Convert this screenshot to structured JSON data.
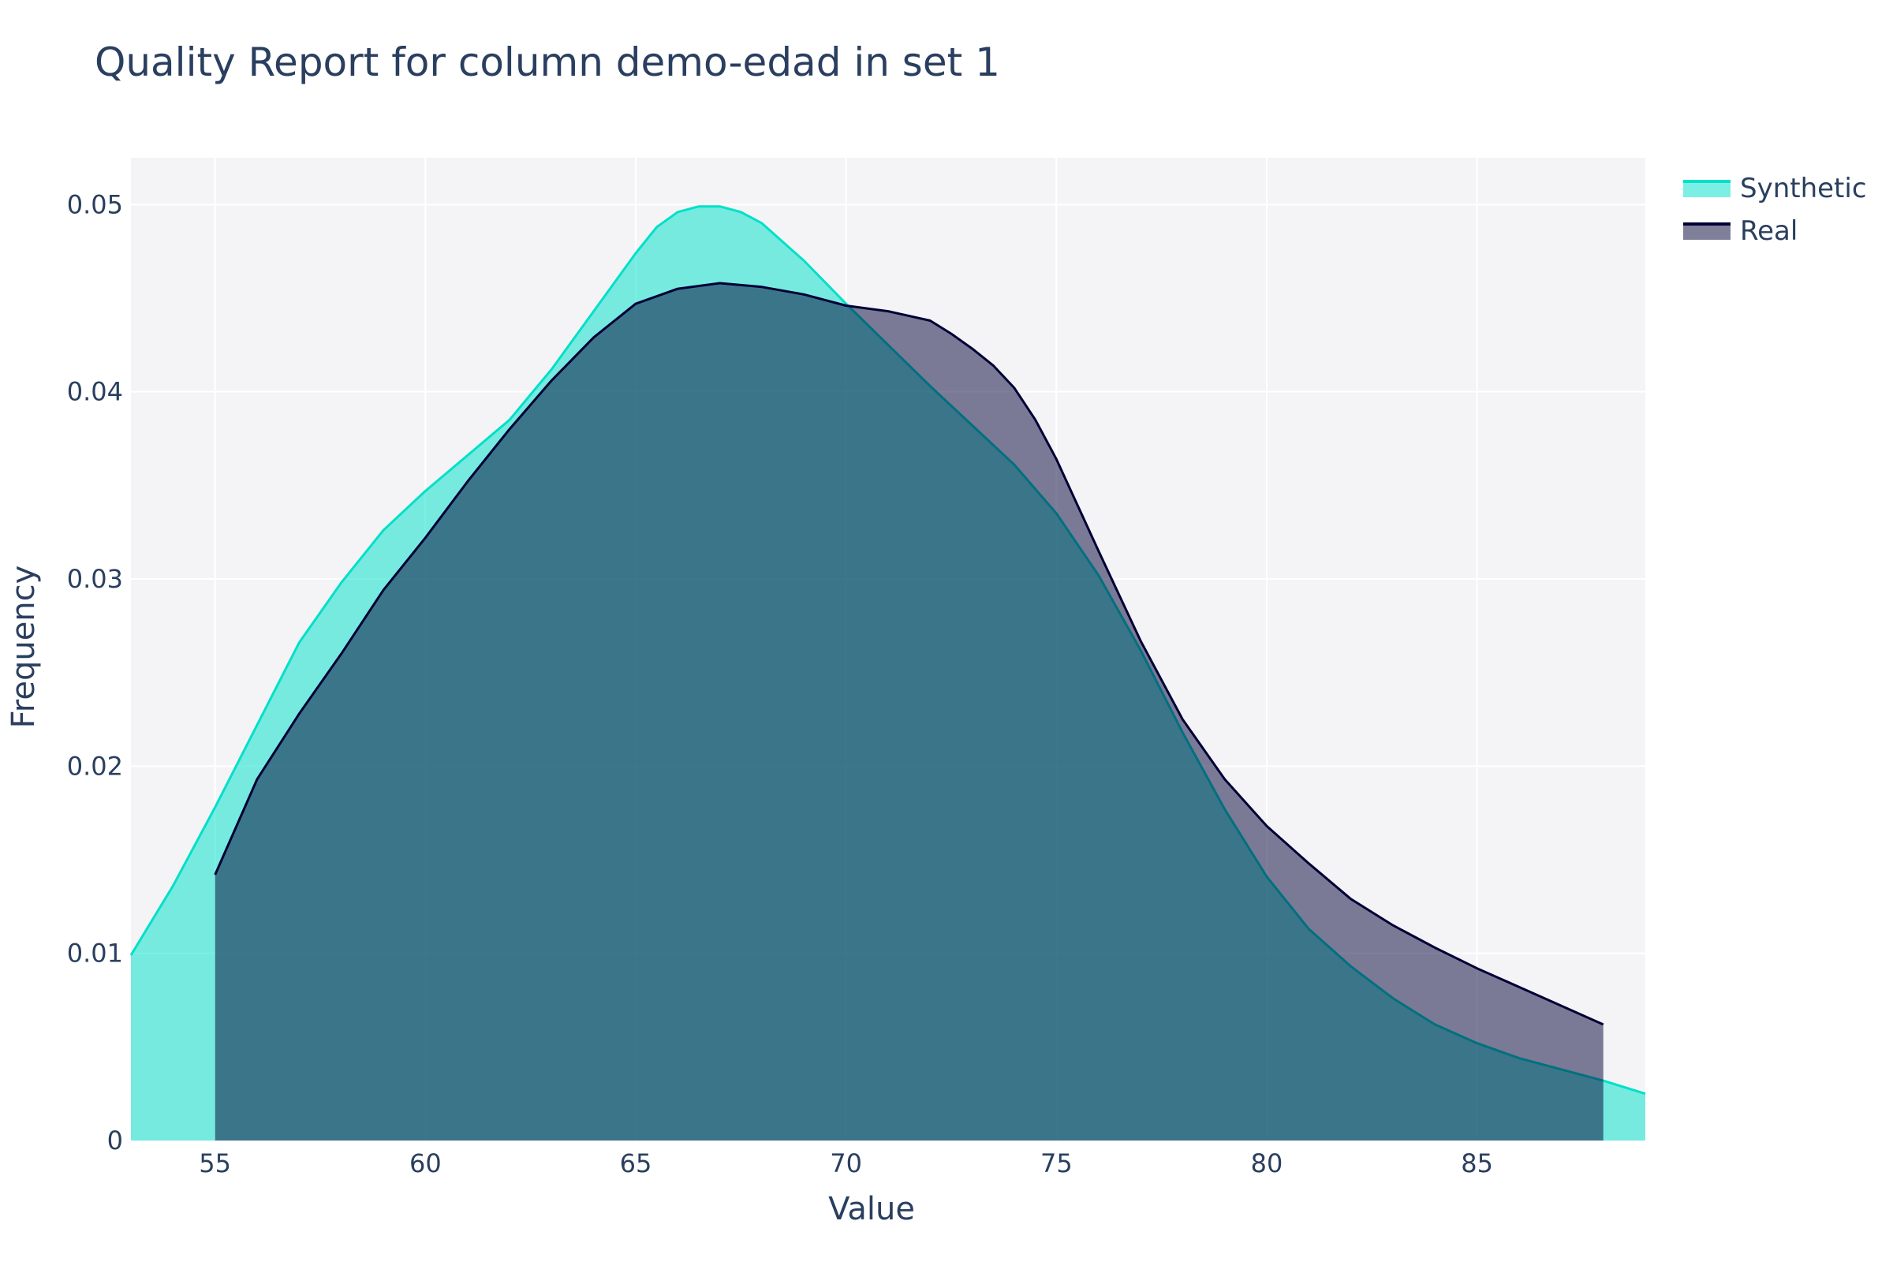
{
  "chart_data": {
    "type": "area",
    "title": "Quality Report for column demo-edad in set 1",
    "xlabel": "Value",
    "ylabel": "Frequency",
    "xlim": [
      53,
      89
    ],
    "ylim": [
      0,
      0.0525
    ],
    "x_ticks": [
      55,
      60,
      65,
      70,
      75,
      80,
      85
    ],
    "y_ticks": [
      0,
      0.01,
      0.02,
      0.03,
      0.04,
      0.05
    ],
    "y_tick_labels": [
      "0",
      "0.01",
      "0.02",
      "0.03",
      "0.04",
      "0.05"
    ],
    "grid": true,
    "legend_position": "top-right",
    "series": [
      {
        "name": "Synthetic",
        "line_color": "#01e0c9",
        "fill_color": "rgba(1, 224, 201, 0.52)",
        "x": [
          53,
          54,
          55,
          56,
          57,
          58,
          59,
          60,
          61,
          62,
          63,
          64,
          65,
          65.5,
          66,
          66.5,
          67,
          67.5,
          68,
          69,
          70,
          71,
          72,
          73,
          74,
          75,
          76,
          77,
          78,
          79,
          80,
          81,
          82,
          83,
          84,
          85,
          86,
          87,
          88,
          89
        ],
        "y": [
          0.0099,
          0.0136,
          0.0178,
          0.0222,
          0.0266,
          0.0298,
          0.0326,
          0.0347,
          0.0366,
          0.0385,
          0.0412,
          0.0443,
          0.0474,
          0.0488,
          0.0496,
          0.0499,
          0.0499,
          0.0496,
          0.049,
          0.047,
          0.0447,
          0.0425,
          0.0403,
          0.0382,
          0.0361,
          0.0335,
          0.0302,
          0.0262,
          0.0218,
          0.0177,
          0.0141,
          0.0113,
          0.0093,
          0.0076,
          0.0062,
          0.0052,
          0.0044,
          0.0038,
          0.0032,
          0.0025
        ]
      },
      {
        "name": "Real",
        "line_color": "#000036",
        "fill_color": "rgba(0, 0, 54, 0.5)",
        "x": [
          55,
          56,
          57,
          58,
          59,
          60,
          61,
          62,
          63,
          64,
          65,
          66,
          67,
          68,
          69,
          70,
          71,
          72,
          72.5,
          73,
          73.5,
          74,
          74.5,
          75,
          76,
          77,
          78,
          79,
          80,
          81,
          82,
          83,
          84,
          85,
          86,
          87,
          88
        ],
        "y": [
          0.0142,
          0.0193,
          0.0228,
          0.026,
          0.0294,
          0.0322,
          0.0352,
          0.038,
          0.0406,
          0.0429,
          0.0447,
          0.0455,
          0.0458,
          0.0456,
          0.0452,
          0.0446,
          0.0443,
          0.0438,
          0.0431,
          0.0423,
          0.0414,
          0.0402,
          0.0385,
          0.0364,
          0.0315,
          0.0267,
          0.0225,
          0.0193,
          0.0168,
          0.0148,
          0.0129,
          0.0115,
          0.0103,
          0.0092,
          0.0082,
          0.0072,
          0.0062
        ]
      }
    ]
  }
}
